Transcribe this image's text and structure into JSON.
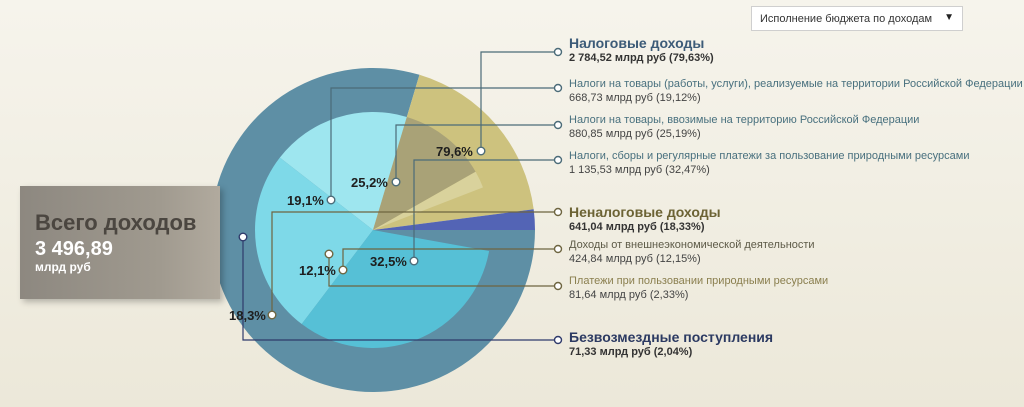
{
  "select": {
    "value": "Исполнение бюджета по доходам"
  },
  "total": {
    "title": "Всего доходов",
    "value": "3 496,89",
    "unit": "млрд руб"
  },
  "colors": {
    "tax_outer": "#5e8fa5",
    "tax_inner": [
      "#9ee6ef",
      "#7ed9e8",
      "#56c0d6"
    ],
    "nontax_outer": "#cdc27e",
    "nontax_inner": [
      "#a9a277",
      "#d9d29c"
    ],
    "grant": "#5364b5",
    "tax_title": "#3c5b78",
    "nontax_title": "#6c6334",
    "grant_title": "#2c3a62",
    "line_tax": "#4b6b78",
    "line_nontax": "#6e6540",
    "line_grant": "#2f3a6b"
  },
  "chart_data": {
    "type": "pie",
    "title": "",
    "groups": [
      {
        "key": "tax",
        "name": "Налоговые доходы",
        "value_text": "2 784,52 млрд руб (79,63%)",
        "value": 2784.52,
        "percent": 79.63,
        "label": "79,6%",
        "items": [
          {
            "name": "Налоги на товары (работы, услуги), реализуемые на территории Российской Федерации",
            "value_text": "668,73 млрд руб (19,12%)",
            "value": 668.73,
            "percent": 19.12,
            "label": "19,1%"
          },
          {
            "name": "Налоги на товары, ввозимые на территорию Российской Федерации",
            "value_text": "880,85 млрд руб (25,19%)",
            "value": 880.85,
            "percent": 25.19,
            "label": "25,2%"
          },
          {
            "name": "Налоги, сборы и регулярные платежи за пользование природными ресурсами",
            "value_text": "1 135,53 млрд руб (32,47%)",
            "value": 1135.53,
            "percent": 32.47,
            "label": "32,5%"
          }
        ]
      },
      {
        "key": "nontax",
        "name": "Неналоговые доходы",
        "value_text": "641,04 млрд руб (18,33%)",
        "value": 641.04,
        "percent": 18.33,
        "label": "18,3%",
        "items": [
          {
            "name": "Доходы от внешнеэкономической деятельности",
            "value_text": "424,84 млрд руб (12,15%)",
            "value": 424.84,
            "percent": 12.15,
            "label": "12,1%"
          },
          {
            "name": "Платежи при пользовании природными ресурсами",
            "value_text": "81,64 млрд руб (2,33%)",
            "value": 81.64,
            "percent": 2.33,
            "label": ""
          }
        ]
      },
      {
        "key": "grant",
        "name": "Безвозмездные поступления",
        "value_text": "71,33 млрд руб (2,04%)",
        "value": 71.33,
        "percent": 2.04,
        "label": "",
        "items": []
      }
    ]
  }
}
